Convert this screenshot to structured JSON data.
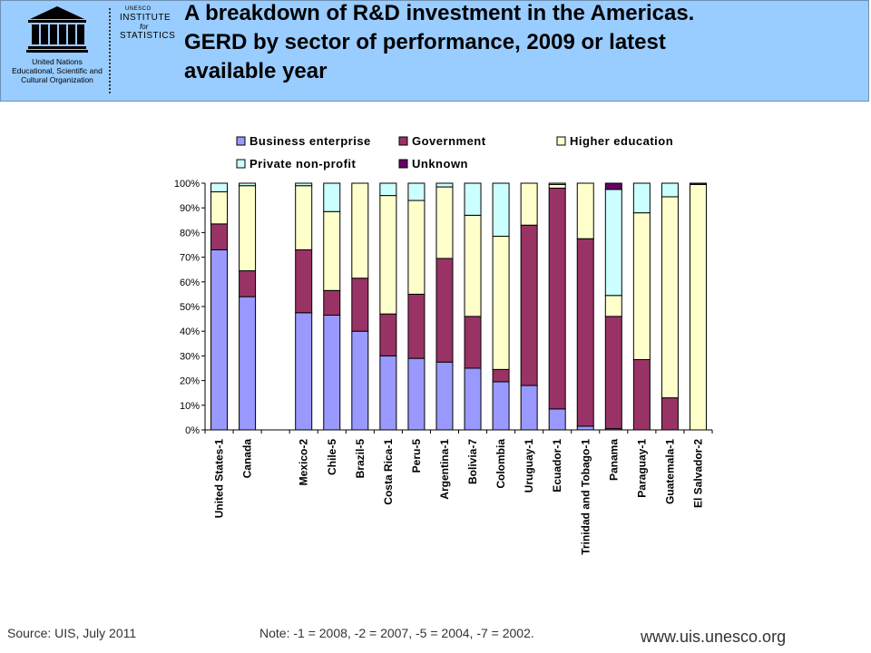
{
  "header": {
    "title_lines": [
      "A breakdown of R&D investment in the Americas.",
      "GERD by sector of performance, 2009 or latest",
      "available year"
    ],
    "unesco_org_lines": [
      "United Nations",
      "Educational, Scientific and",
      "Cultural Organization"
    ],
    "uis_logo": {
      "small": "UNESCO",
      "institute": "INSTITUTE",
      "for": "for",
      "statistics": "STATISTICS"
    },
    "colors": {
      "background": "#99ccff",
      "title": "#000000"
    }
  },
  "chart_data": {
    "type": "stacked-bar",
    "title": "",
    "xlabel": "",
    "ylabel": "",
    "ylim": [
      0,
      100
    ],
    "yticks": [
      "0%",
      "10%",
      "20%",
      "30%",
      "40%",
      "50%",
      "60%",
      "70%",
      "80%",
      "90%",
      "100%"
    ],
    "categories": [
      "United States-1",
      "Canada",
      "",
      "Mexico-2",
      "Chile-5",
      "Brazil-5",
      "Costa Rica-1",
      "Peru-5",
      "Argentina-1",
      "Bolivia-7",
      "Colombia",
      "Uruguay-1",
      "Ecuador-1",
      "Trinidad and Tobago-1",
      "Panama",
      "Paraguay-1",
      "Guatemala-1",
      "El Salvador-2"
    ],
    "series": [
      {
        "name": "Business enterprise",
        "color": "#9999ff",
        "values": [
          73,
          54,
          0,
          47.5,
          46.5,
          40,
          30,
          29,
          27.5,
          25,
          19.5,
          18,
          8.5,
          1.5,
          0.5,
          0,
          0,
          0
        ]
      },
      {
        "name": "Government",
        "color": "#993366",
        "values": [
          10.5,
          10.5,
          0,
          25.5,
          10,
          21.5,
          17,
          26,
          42,
          21,
          5,
          65,
          89.5,
          76,
          45.5,
          28.5,
          13,
          0
        ]
      },
      {
        "name": "Higher education",
        "color": "#ffffcc",
        "values": [
          13,
          34.5,
          0,
          26,
          32,
          38.5,
          48,
          38,
          29,
          41,
          54,
          17,
          1.5,
          22.5,
          8.5,
          59.5,
          81.5,
          99.5
        ]
      },
      {
        "name": "Private non-profit",
        "color": "#ccffff",
        "values": [
          3.5,
          1,
          0,
          1,
          11.5,
          0,
          5,
          7,
          1.5,
          13,
          21.5,
          0,
          0.5,
          0,
          43,
          12,
          5.5,
          0
        ]
      },
      {
        "name": "Unknown",
        "color": "#660066",
        "values": [
          0,
          0,
          0,
          0,
          0,
          0,
          0,
          0,
          0,
          0,
          0,
          0,
          0,
          0,
          2.5,
          0,
          0,
          0.5
        ]
      }
    ],
    "legend": "top",
    "grid": false
  },
  "footer": {
    "source": "Source: UIS, July 2011",
    "note": "Note: -1 = 2008, -2 = 2007, -5 = 2004, -7 = 2002.",
    "url": "www.uis.unesco.org"
  }
}
